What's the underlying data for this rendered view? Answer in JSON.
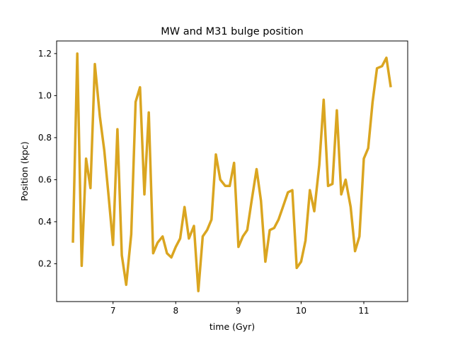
{
  "chart_data": {
    "type": "line",
    "title": "MW and M31 bulge position",
    "xlabel": "time (Gyr)",
    "ylabel": "Position (kpc)",
    "xlim": [
      6.1,
      11.7
    ],
    "ylim": [
      0.02,
      1.26
    ],
    "xticks": [
      7,
      8,
      9,
      10,
      11
    ],
    "xtick_labels": [
      "7",
      "8",
      "9",
      "10",
      "11"
    ],
    "yticks": [
      0.2,
      0.4,
      0.6,
      0.8,
      1.0,
      1.2
    ],
    "ytick_labels": [
      "0.2",
      "0.4",
      "0.6",
      "0.8",
      "1.0",
      "1.2"
    ],
    "grid": false,
    "legend": "none",
    "line_color": "#daa520",
    "series": [
      {
        "x": [
          6.36,
          6.43,
          6.5,
          6.57,
          6.64,
          6.71,
          6.79,
          6.86,
          6.93,
          7.0,
          7.07,
          7.14,
          7.21,
          7.29,
          7.36,
          7.43,
          7.5,
          7.57,
          7.64,
          7.71,
          7.79,
          7.86,
          7.93,
          8.0,
          8.07,
          8.14,
          8.21,
          8.29,
          8.36,
          8.43,
          8.5,
          8.57,
          8.64,
          8.71,
          8.79,
          8.86,
          8.93,
          9.0,
          9.07,
          9.14,
          9.21,
          9.29,
          9.36,
          9.43,
          9.5,
          9.57,
          9.64,
          9.71,
          9.79,
          9.86,
          9.93,
          10.0,
          10.07,
          10.14,
          10.21,
          10.29,
          10.36,
          10.43,
          10.5,
          10.57,
          10.64,
          10.71,
          10.79,
          10.86,
          10.93,
          11.0,
          11.07,
          11.14,
          11.21,
          11.29,
          11.36,
          11.43
        ],
        "y": [
          0.3,
          1.2,
          0.19,
          0.7,
          0.56,
          1.15,
          0.9,
          0.74,
          0.52,
          0.29,
          0.84,
          0.24,
          0.1,
          0.34,
          0.97,
          1.04,
          0.53,
          0.92,
          0.25,
          0.3,
          0.33,
          0.25,
          0.23,
          0.28,
          0.32,
          0.47,
          0.32,
          0.38,
          0.07,
          0.33,
          0.36,
          0.41,
          0.72,
          0.6,
          0.57,
          0.57,
          0.68,
          0.28,
          0.33,
          0.36,
          0.5,
          0.65,
          0.5,
          0.21,
          0.36,
          0.37,
          0.41,
          0.47,
          0.54,
          0.55,
          0.18,
          0.21,
          0.31,
          0.55,
          0.45,
          0.67,
          0.98,
          0.57,
          0.58,
          0.93,
          0.53,
          0.6,
          0.47,
          0.26,
          0.33,
          0.7,
          0.75,
          0.97,
          1.13,
          1.14,
          1.18,
          1.04
        ]
      }
    ]
  }
}
